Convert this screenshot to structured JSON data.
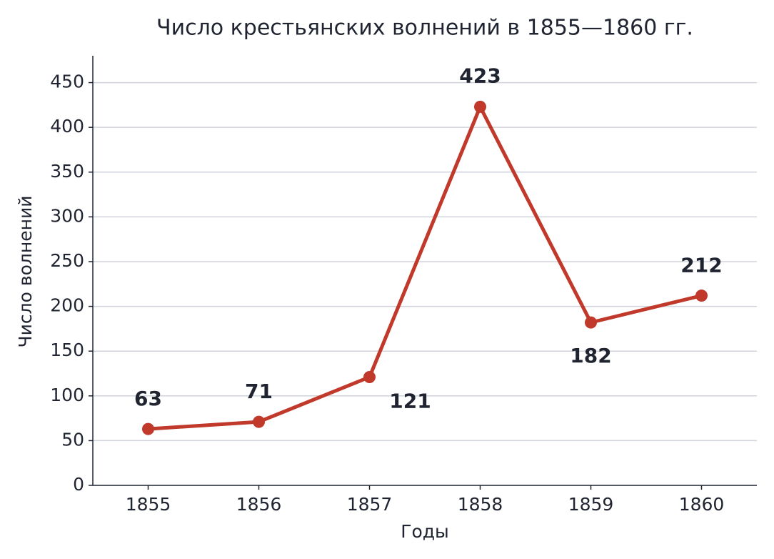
{
  "chart_data": {
    "type": "line",
    "title": "Число крестьянских волнений в 1855—1860 гг.",
    "x_label": "Годы",
    "y_label": "Число волнений",
    "x": [
      1855,
      1856,
      1857,
      1858,
      1859,
      1860
    ],
    "series": [
      {
        "name": "Число волнений",
        "color": "#c0392b",
        "values": [
          63,
          71,
          121,
          423,
          182,
          212
        ]
      }
    ],
    "xlim": [
      1854.5,
      1860.5
    ],
    "xticks": [
      1855,
      1856,
      1857,
      1858,
      1859,
      1860
    ],
    "ylim": [
      0,
      480
    ],
    "yticks": [
      0,
      50,
      100,
      150,
      200,
      250,
      300,
      350,
      400,
      450
    ],
    "grid": true
  }
}
